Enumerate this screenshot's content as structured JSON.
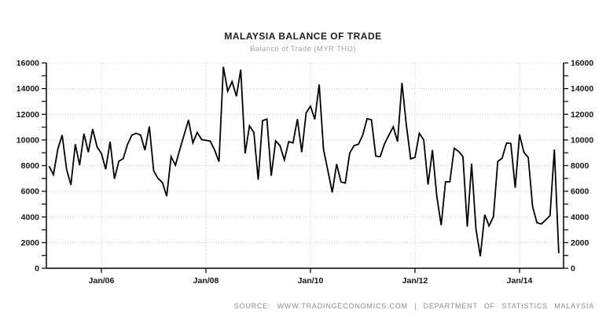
{
  "header": {
    "title": "MALAYSIA BALANCE OF TRADE",
    "subtitle": "Balance of Trade (MYR THO)"
  },
  "footer": {
    "source": "SOURCE: WWW.TRADINGECONOMICS.COM | DEPARTMENT OF STATISTICS MALAYSIA"
  },
  "chart_data": {
    "type": "line",
    "title": "MALAYSIA BALANCE OF TRADE",
    "subtitle": "Balance of Trade (MYR THO)",
    "xlabel": "",
    "ylabel": "",
    "ylim": [
      0,
      16000
    ],
    "y_ticks": [
      0,
      2000,
      4000,
      6000,
      8000,
      10000,
      12000,
      14000,
      16000
    ],
    "y_minor_tick_step": 1000,
    "grid": "dotted",
    "legend": "none",
    "line_color": "#000000",
    "grid_color": "#cccccc",
    "axis_color": "#000000",
    "background": "#ffffff",
    "x_ticks": [
      {
        "label": "Jan/06",
        "index": 12
      },
      {
        "label": "Jan/08",
        "index": 36
      },
      {
        "label": "Jan/10",
        "index": 60
      },
      {
        "label": "Jan/12",
        "index": 84
      },
      {
        "label": "Jan/14",
        "index": 108
      }
    ],
    "series": [
      {
        "name": "Balance of Trade (MYR THO)",
        "frequency": "monthly",
        "start_month": "2005-01",
        "end_month": "2014-10",
        "values": [
          7950,
          7300,
          9300,
          10380,
          7720,
          6500,
          9670,
          8030,
          10480,
          9050,
          10850,
          9460,
          8950,
          7720,
          9860,
          6970,
          8340,
          8540,
          9670,
          10380,
          10520,
          10380,
          9200,
          11050,
          7600,
          7000,
          6690,
          5620,
          8700,
          8030,
          9260,
          10400,
          11550,
          9770,
          10590,
          10030,
          9970,
          9910,
          9200,
          8300,
          15700,
          13800,
          14550,
          13400,
          15480,
          8950,
          11100,
          10590,
          6900,
          11500,
          11620,
          7210,
          9930,
          9560,
          8440,
          9870,
          9770,
          11620,
          9050,
          12100,
          12630,
          11610,
          14320,
          9250,
          7610,
          5910,
          8120,
          6730,
          6640,
          8980,
          9560,
          9660,
          10380,
          11650,
          11570,
          8740,
          8700,
          9700,
          10380,
          11030,
          9870,
          14440,
          11200,
          8530,
          8640,
          10520,
          10000,
          6520,
          9210,
          5620,
          3360,
          6730,
          6730,
          9350,
          9110,
          8700,
          3240,
          8160,
          3040,
          940,
          4180,
          3300,
          4020,
          8330,
          8570,
          9760,
          9720,
          6280,
          10420,
          9040,
          8630,
          4800,
          3550,
          3450,
          3770,
          4100,
          9250,
          1180
        ]
      }
    ]
  }
}
